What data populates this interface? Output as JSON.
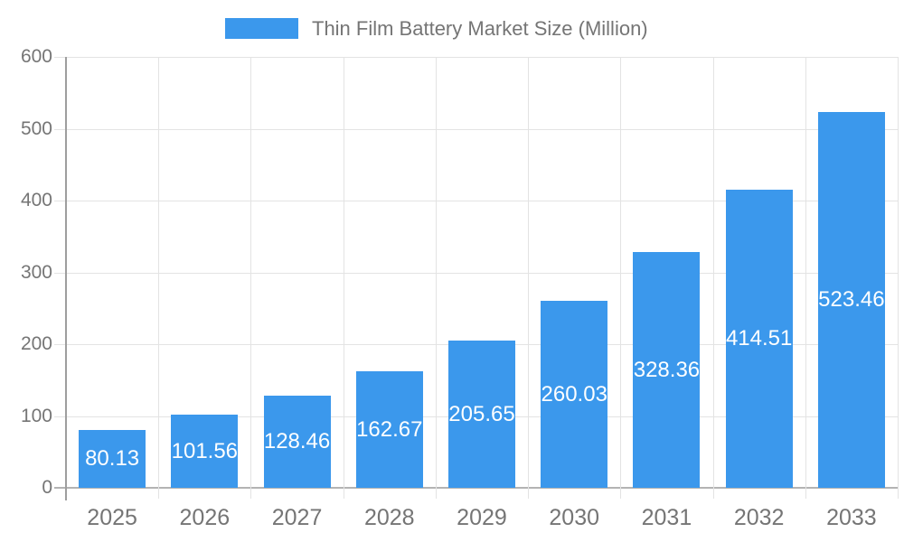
{
  "legend": {
    "label": "Thin Film Battery Market Size (Million)"
  },
  "chart_data": {
    "type": "bar",
    "title": "Thin Film Battery Market Size (Million)",
    "categories": [
      "2025",
      "2026",
      "2027",
      "2028",
      "2029",
      "2030",
      "2031",
      "2032",
      "2033"
    ],
    "values": [
      80.13,
      101.56,
      128.46,
      162.67,
      205.65,
      260.03,
      328.36,
      414.51,
      523.46
    ],
    "value_labels": [
      "80.13",
      "101.56",
      "128.46",
      "162.67",
      "205.65",
      "260.03",
      "328.36",
      "414.51",
      "523.46"
    ],
    "xlabel": "",
    "ylabel": "",
    "ylim": [
      0,
      600
    ],
    "yticks": [
      0,
      100,
      200,
      300,
      400,
      500,
      600
    ],
    "grid": true,
    "legend_position": "top-center",
    "colors": {
      "bar": "#3B98EC",
      "value_label": "#FFFFFF",
      "axis_text": "#757575",
      "gridline": "#E3E3E3",
      "axis_line": "#9E9E9E",
      "baseline": "#B3B3B3",
      "background": "#FFFFFF"
    }
  }
}
